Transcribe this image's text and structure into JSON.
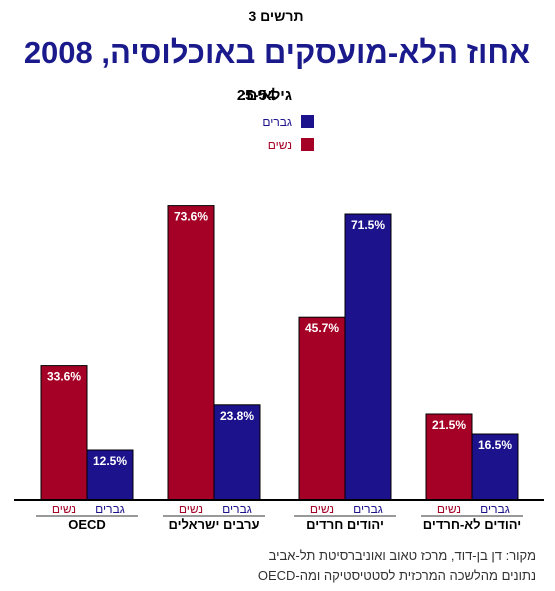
{
  "figure_label": "תרשים 3",
  "title": "אחוז הלא-מועסקים באוכלוסיה, 2008",
  "subtitle_label": "גילאים:",
  "subtitle_value": "25-54",
  "colors": {
    "women": "#a50026",
    "men": "#1c128c",
    "title": "#1a1a8c",
    "women_text": "#a50026",
    "men_text": "#1c128c"
  },
  "source_lines": [
    "מקור: דן בן-דוד, מרכז טאוב ואוניברסיטת תל-אביב",
    "נתונים מהלשכה המרכזית לסטטיסטיקה ומה-OECD"
  ],
  "chart_data": {
    "type": "bar",
    "title": "אחוז הלא-מועסקים באוכלוסיה, 2008",
    "subtitle": "גילאים: 25-54",
    "categories": [
      "OECD",
      "ערבים ישראלים",
      "יהודים חרדים",
      "יהודים לא-חרדים"
    ],
    "series": [
      {
        "name": "נשים",
        "values": [
          33.6,
          73.6,
          45.7,
          21.5
        ],
        "labels": [
          "33.6%",
          "73.6%",
          "45.7%",
          "21.5%"
        ]
      },
      {
        "name": "גברים",
        "values": [
          12.5,
          23.8,
          71.5,
          16.5
        ],
        "labels": [
          "12.5%",
          "23.8%",
          "71.5%",
          "16.5%"
        ]
      }
    ],
    "bar_sublabels": [
      "נשים",
      "גברים"
    ],
    "legend": [
      {
        "name": "גברים",
        "color": "#1c128c"
      },
      {
        "name": "נשים",
        "color": "#a50026"
      }
    ],
    "legend_position": "top-center",
    "ylim": [
      0,
      100
    ],
    "grid": false,
    "xlabel": "",
    "ylabel": ""
  }
}
